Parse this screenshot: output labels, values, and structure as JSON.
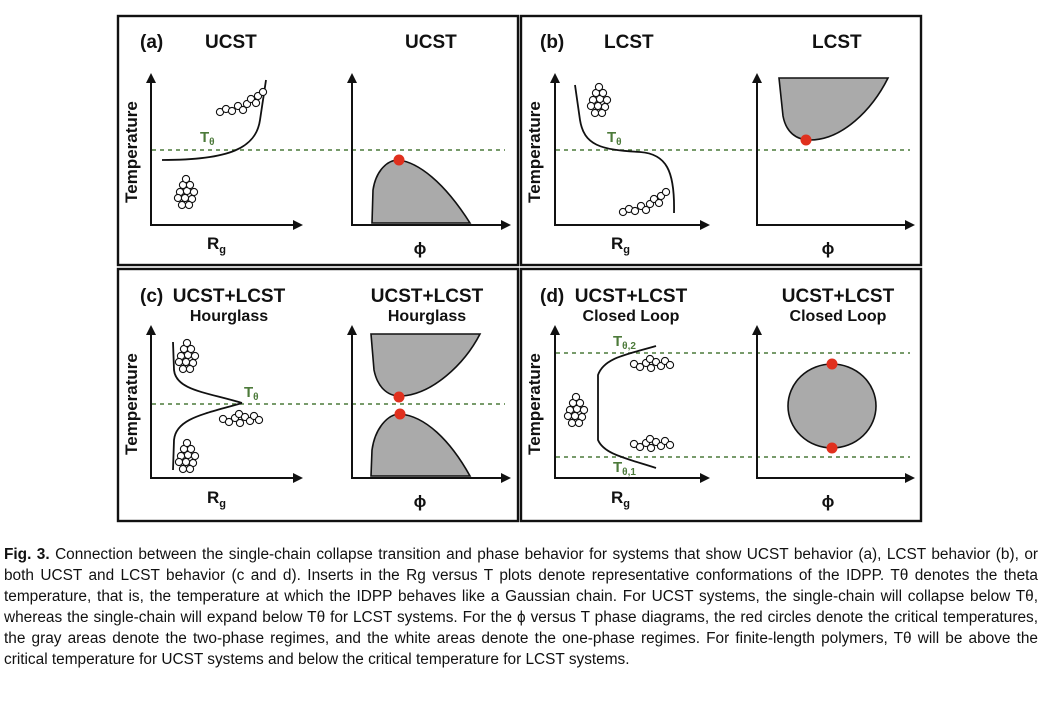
{
  "panels": {
    "a": {
      "label": "(a)",
      "left_title": "UCST",
      "right_title": "UCST",
      "t_label": "T",
      "t_sub": "θ",
      "xlabel_left": "R",
      "xlabel_left_sub": "g",
      "xlabel_right": "ϕ",
      "ylabel": "Temperature"
    },
    "b": {
      "label": "(b)",
      "left_title": "LCST",
      "right_title": "LCST",
      "t_label": "T",
      "t_sub": "θ",
      "xlabel_left": "R",
      "xlabel_left_sub": "g",
      "xlabel_right": "ϕ",
      "ylabel": "Temperature"
    },
    "c": {
      "label": "(c)",
      "left_title": "UCST+LCST",
      "left_subtitle": "Hourglass",
      "right_title": "UCST+LCST",
      "right_subtitle": "Hourglass",
      "t_label": "T",
      "t_sub": "θ",
      "xlabel_left": "R",
      "xlabel_left_sub": "g",
      "xlabel_right": "ϕ",
      "ylabel": "Temperature"
    },
    "d": {
      "label": "(d)",
      "left_title": "UCST+LCST",
      "left_subtitle": "Closed Loop",
      "right_title": "UCST+LCST",
      "right_subtitle": "Closed Loop",
      "t_label_upper": "T",
      "t_sub_upper": "θ,2",
      "t_label_lower": "T",
      "t_sub_lower": "θ,1",
      "xlabel_left": "R",
      "xlabel_left_sub": "g",
      "xlabel_right": "ϕ",
      "ylabel": "Temperature"
    }
  },
  "colors": {
    "critical_point": "#e0301e",
    "two_phase_area": "#aaaaaa",
    "theta_line": "#4c7a3a"
  },
  "caption": {
    "figure_label": "Fig. 3.",
    "text": "Connection between the single-chain collapse transition and phase behavior for systems that show UCST behavior (a), LCST behavior (b), or both UCST and LCST behavior (c and d). Inserts in the Rg versus T plots denote representative conformations of the IDPP. Tθ denotes the theta temperature, that is, the temperature at which the IDPP behaves like a Gaussian chain. For UCST systems, the single-chain will collapse below Tθ, whereas the single-chain will expand below Tθ for LCST systems. For the ϕ versus T phase diagrams, the red circles denote the critical temperatures, the gray areas denote the two-phase regimes, and the white areas denote the one-phase regimes. For finite-length polymers, Tθ will be above the critical temperature for UCST systems and below the critical temperature for LCST systems."
  }
}
